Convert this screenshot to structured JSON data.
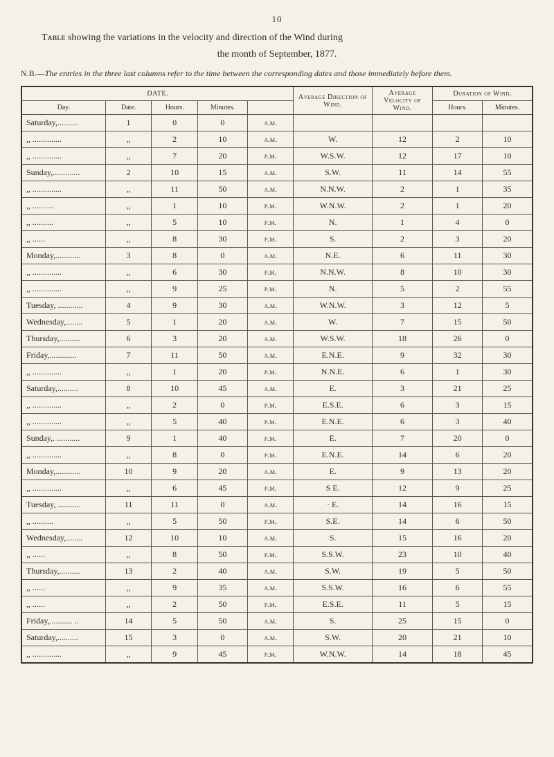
{
  "pageNumber": "10",
  "introLine1": "Tᴀʙʟᴇ showing the variations in the velocity and direction of the Wind during",
  "introLine2": "the month of September, 1877.",
  "nbPrefix": "N.B.—",
  "nbText": "The entries in the three last columns refer to the time between the corresponding dates and those immediately before them.",
  "headers": {
    "date": "DATE.",
    "avgDir": "Average Direction of Wind.",
    "avgVel": "Average Velocity of Wind.",
    "duration": "Duration of Wind.",
    "day": "Day.",
    "dateCol": "Date.",
    "hours": "Hours.",
    "minutes": "Minutes.",
    "durHours": "Hours.",
    "durMinutes": "Minutes."
  },
  "rows": [
    {
      "day": "Saturday,..........",
      "date": "1",
      "h": "0",
      "m": "0",
      "ap": "a.m.",
      "dir": "",
      "vel": "",
      "dh": "",
      "dm": ""
    },
    {
      "day": ",,   ..............",
      "date": ",,",
      "h": "2",
      "m": "10",
      "ap": "a.m.",
      "dir": "W.",
      "vel": "12",
      "dh": "2",
      "dm": "10"
    },
    {
      "day": ",,   ..............",
      "date": ",,",
      "h": "7",
      "m": "20",
      "ap": "p.m.",
      "dir": "W.S.W.",
      "vel": "12",
      "dh": "17",
      "dm": "10"
    },
    {
      "day": "Sunday,.............",
      "date": "2",
      "h": "10",
      "m": "15",
      "ap": "a.m.",
      "dir": "S.W.",
      "vel": "11",
      "dh": "14",
      "dm": "55"
    },
    {
      "day": ",,   ..............",
      "date": ",,",
      "h": "11",
      "m": "50",
      "ap": "a.m.",
      "dir": "N.N.W.",
      "vel": "2",
      "dh": "1",
      "dm": "35"
    },
    {
      "day": ",,   ..........",
      "date": ",,",
      "h": "1",
      "m": "10",
      "ap": "p.m.",
      "dir": "W.N.W.",
      "vel": "2",
      "dh": "1",
      "dm": "20"
    },
    {
      "day": ",,   ..........",
      "date": ",,",
      "h": "5",
      "m": "10",
      "ap": "p.m.",
      "dir": "N.",
      "vel": "1",
      "dh": "4",
      "dm": "0"
    },
    {
      "day": ",,   ......",
      "date": ",,",
      "h": "8",
      "m": "30",
      "ap": "p.m.",
      "dir": "S.",
      "vel": "2",
      "dh": "3",
      "dm": "20"
    },
    {
      "day": "Monday,............",
      "date": "3",
      "h": "8",
      "m": "0",
      "ap": "a.m.",
      "dir": "N.E.",
      "vel": "6",
      "dh": "11",
      "dm": "30"
    },
    {
      "day": ",,   ..............",
      "date": ",,",
      "h": "6",
      "m": "30",
      "ap": "p.m.",
      "dir": "N.N.W.",
      "vel": "8",
      "dh": "10",
      "dm": "30"
    },
    {
      "day": ",,   ..............",
      "date": ",,",
      "h": "9",
      "m": "25",
      "ap": "p.m.",
      "dir": "N.",
      "vel": "5",
      "dh": "2",
      "dm": "55"
    },
    {
      "day": "Tuesday, ............",
      "date": "4",
      "h": "9",
      "m": "30",
      "ap": "a.m.",
      "dir": "W.N.W.",
      "vel": "3",
      "dh": "12",
      "dm": "5"
    },
    {
      "day": "Wednesday,........",
      "date": "5",
      "h": "1",
      "m": "20",
      "ap": "a.m.",
      "dir": "W.",
      "vel": "7",
      "dh": "15",
      "dm": "50"
    },
    {
      "day": "Thursday,..........",
      "date": "6",
      "h": "3",
      "m": "20",
      "ap": "a.m.",
      "dir": "W.S.W.",
      "vel": "18",
      "dh": "26",
      "dm": "0"
    },
    {
      "day": "Friday,.............",
      "date": "7",
      "h": "11",
      "m": "50",
      "ap": "a.m.",
      "dir": "E.N.E.",
      "vel": "9",
      "dh": "32",
      "dm": "30"
    },
    {
      "day": ",,   ..............",
      "date": ",,",
      "h": "1",
      "m": "20",
      "ap": "p.m.",
      "dir": "N.N.E.",
      "vel": "6",
      "dh": "1",
      "dm": "30"
    },
    {
      "day": "Saturday,..........",
      "date": "8",
      "h": "10",
      "m": "45",
      "ap": "a.m.",
      "dir": "E.",
      "vel": "3",
      "dh": "21",
      "dm": "25"
    },
    {
      "day": ",,   ..............",
      "date": ",,",
      "h": "2",
      "m": "0",
      "ap": "p.m.",
      "dir": "E.S.E.",
      "vel": "6",
      "dh": "3",
      "dm": "15"
    },
    {
      "day": ",,   ..............",
      "date": ",,",
      "h": "5",
      "m": "40",
      "ap": "p.m.",
      "dir": "E.N.E.",
      "vel": "6",
      "dh": "3",
      "dm": "40"
    },
    {
      "day": "Sunday,.  ...........",
      "date": "9",
      "h": "1",
      "m": "40",
      "ap": "p.m.",
      "dir": "E.",
      "vel": "7",
      "dh": "20",
      "dm": "0"
    },
    {
      "day": ",,   ..............",
      "date": ",,",
      "h": "8",
      "m": "0",
      "ap": "p.m.",
      "dir": "E.N.E.",
      "vel": "14",
      "dh": "6",
      "dm": "20"
    },
    {
      "day": "Monday,............",
      "date": "10",
      "h": "9",
      "m": "20",
      "ap": "a.m.",
      "dir": "E.",
      "vel": "9",
      "dh": "13",
      "dm": "20"
    },
    {
      "day": ",,   ..............",
      "date": ",,",
      "h": "6",
      "m": "45",
      "ap": "p.m.",
      "dir": "S E.",
      "vel": "12",
      "dh": "9",
      "dm": "25"
    },
    {
      "day": "Tuesday, ...........",
      "date": "11",
      "h": "11",
      "m": "0",
      "ap": "a.m.",
      "dir": "· E.",
      "vel": "14",
      "dh": "16",
      "dm": "15"
    },
    {
      "day": ",,   ..........",
      "date": ",,",
      "h": "5",
      "m": "50",
      "ap": "p.m.",
      "dir": "S.E.",
      "vel": "14",
      "dh": "6",
      "dm": "50"
    },
    {
      "day": "Wednesday,........",
      "date": "12",
      "h": "10",
      "m": "10",
      "ap": "a.m.",
      "dir": "S.",
      "vel": "15",
      "dh": "16",
      "dm": "20"
    },
    {
      "day": ",,   ......",
      "date": ",,",
      "h": "8",
      "m": "50",
      "ap": "p.m.",
      "dir": "S.S.W.",
      "vel": "23",
      "dh": "10",
      "dm": "40"
    },
    {
      "day": "Thursday,..........",
      "date": "13",
      "h": "2",
      "m": "40",
      "ap": "a.m.",
      "dir": "S.W.",
      "vel": "19",
      "dh": "5",
      "dm": "50"
    },
    {
      "day": ",,   ......",
      "date": ",,",
      "h": "9",
      "m": "35",
      "ap": "a.m.",
      "dir": "S.S.W.",
      "vel": "16",
      "dh": "6",
      "dm": "55"
    },
    {
      "day": ",,   ......",
      "date": ",,",
      "h": "2",
      "m": "50",
      "ap": "p.m.",
      "dir": "E.S.E.",
      "vel": "11",
      "dh": "5",
      "dm": "15"
    },
    {
      "day": "Friday,........... ..",
      "date": "14",
      "h": "5",
      "m": "50",
      "ap": "a.m.",
      "dir": "S.",
      "vel": "25",
      "dh": "15",
      "dm": "0"
    },
    {
      "day": "Saturday,..........",
      "date": "15",
      "h": "3",
      "m": "0",
      "ap": "a.m.",
      "dir": "S.W.",
      "vel": "20",
      "dh": "21",
      "dm": "10"
    },
    {
      "day": ",,   ..............",
      "date": ",,",
      "h": "9",
      "m": "45",
      "ap": "p.m.",
      "dir": "W.N.W.",
      "vel": "14",
      "dh": "18",
      "dm": "45"
    }
  ]
}
